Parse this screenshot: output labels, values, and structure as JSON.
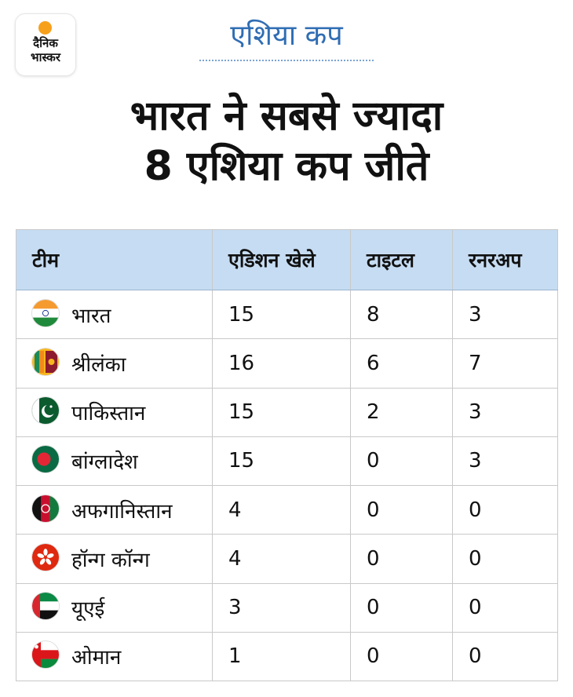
{
  "logo": {
    "line1": "दैनिक",
    "line2": "भास्कर",
    "accent": "#f7a01c"
  },
  "kicker": "एशिया कप",
  "headline": {
    "line1": "भारत ने सबसे ज्यादा",
    "line2": "8 एशिया कप जीते"
  },
  "table": {
    "headers": [
      "टीम",
      "एडिशन खेले",
      "टाइटल",
      "रनरअप"
    ],
    "rows": [
      {
        "team": "भारत",
        "flag": "india-flag-icon",
        "editions": "15",
        "titles": "8",
        "runnerup": "3"
      },
      {
        "team": "श्रीलंका",
        "flag": "sri-lanka-flag-icon",
        "editions": "16",
        "titles": "6",
        "runnerup": "7"
      },
      {
        "team": "पाकिस्तान",
        "flag": "pakistan-flag-icon",
        "editions": "15",
        "titles": "2",
        "runnerup": "3"
      },
      {
        "team": "बांग्लादेश",
        "flag": "bangladesh-flag-icon",
        "editions": "15",
        "titles": "0",
        "runnerup": "3"
      },
      {
        "team": "अफगानिस्तान",
        "flag": "afghanistan-flag-icon",
        "editions": "4",
        "titles": "0",
        "runnerup": "0"
      },
      {
        "team": "हॉन्ग कॉन्ग",
        "flag": "hong-kong-flag-icon",
        "editions": "4",
        "titles": "0",
        "runnerup": "0"
      },
      {
        "team": "यूएई",
        "flag": "uae-flag-icon",
        "editions": "3",
        "titles": "0",
        "runnerup": "0"
      },
      {
        "team": "ओमान",
        "flag": "oman-flag-icon",
        "editions": "1",
        "titles": "0",
        "runnerup": "0"
      }
    ]
  },
  "colors": {
    "header_bg": "#c6dcf2",
    "kicker": "#2f6db3"
  }
}
